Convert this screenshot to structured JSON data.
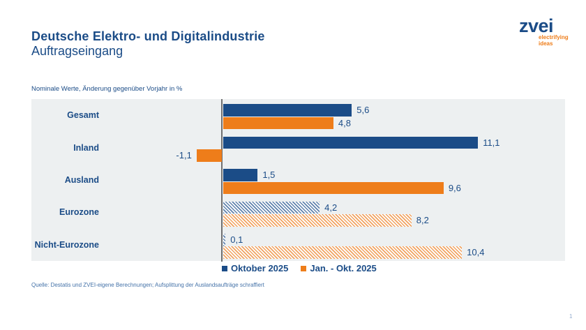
{
  "header": {
    "title": "Deutsche Elektro- und Digitalindustrie",
    "subtitle": "Auftragseingang"
  },
  "logo": {
    "name": "zvei",
    "tagline_line1": "electrifying",
    "tagline_line2": "ideas"
  },
  "chart_data": {
    "type": "bar",
    "orientation": "horizontal",
    "title": "Nominale Werte, Änderung gegenüber Vorjahr in %",
    "categories": [
      "Gesamt",
      "Inland",
      "Ausland",
      "Eurozone",
      "Nicht-Eurozone"
    ],
    "hatched_categories": [
      "Eurozone",
      "Nicht-Eurozone"
    ],
    "series": [
      {
        "name": "Oktober 2025",
        "values": [
          5.6,
          11.1,
          1.5,
          4.2,
          0.1
        ],
        "labels": [
          "5,6",
          "11,1",
          "1,5",
          "4,2",
          "0,1"
        ]
      },
      {
        "name": "Jan. - Okt. 2025",
        "values": [
          4.8,
          -1.1,
          9.6,
          8.2,
          10.4
        ],
        "labels": [
          "4,8",
          "-1,1",
          "9,6",
          "8,2",
          "10,4"
        ]
      }
    ],
    "xlim": [
      -2.2,
      15.0
    ],
    "grid": false,
    "legend_position": "bottom",
    "value_label_decimal": "comma"
  },
  "source": "Quelle: Destatis und ZVEI-eigene Berechnungen; Aufsplittung der Auslandsaufträge schraffiert",
  "page_number": "1",
  "colors": {
    "blue": "#1b4c87",
    "orange": "#ee7d1a",
    "hatch_blue": "#5f82ad",
    "hatch_orange": "#f2a360",
    "chart_bg": "#edf0f1",
    "axis": "#707070"
  }
}
